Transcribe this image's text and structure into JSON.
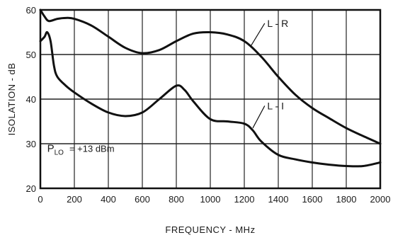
{
  "chart_data": {
    "type": "line",
    "title": "",
    "xlabel": "FREQUENCY - MHz",
    "ylabel": "ISOLATION - dB",
    "xlim": [
      0,
      2000
    ],
    "ylim": [
      20,
      60
    ],
    "x_ticks": [
      "0",
      "200",
      "400",
      "600",
      "800",
      "1000",
      "1200",
      "1400",
      "1600",
      "1800",
      "2000"
    ],
    "y_ticks": [
      "20",
      "30",
      "40",
      "50",
      "60"
    ],
    "grid": "on",
    "annotation": {
      "symbol": "P",
      "subscript": "LO",
      "value": "= +13 dBm"
    },
    "series": [
      {
        "name": "L - R",
        "x": [
          0,
          25,
          50,
          100,
          150,
          200,
          300,
          400,
          500,
          600,
          700,
          800,
          900,
          1000,
          1100,
          1200,
          1300,
          1400,
          1500,
          1600,
          1700,
          1800,
          1900,
          2000
        ],
        "y": [
          60,
          58.5,
          57.5,
          58,
          58.2,
          58,
          56.5,
          54,
          51.5,
          50.3,
          51,
          53,
          54.7,
          55,
          54.5,
          53,
          49.5,
          45,
          41,
          38,
          35.7,
          33.5,
          31.7,
          30
        ]
      },
      {
        "name": "L - I",
        "x": [
          0,
          25,
          40,
          60,
          80,
          100,
          150,
          200,
          300,
          400,
          500,
          600,
          700,
          800,
          850,
          900,
          1000,
          1100,
          1200,
          1250,
          1300,
          1400,
          1500,
          1600,
          1700,
          1800,
          1900,
          2000
        ],
        "y": [
          53,
          54,
          55,
          53,
          47.5,
          45,
          43,
          41.5,
          39,
          37,
          36.2,
          37,
          40,
          43,
          42,
          39.5,
          35.5,
          35,
          34.5,
          33,
          30.5,
          27.5,
          26.5,
          25.8,
          25.3,
          25,
          25,
          25.8
        ]
      }
    ]
  }
}
